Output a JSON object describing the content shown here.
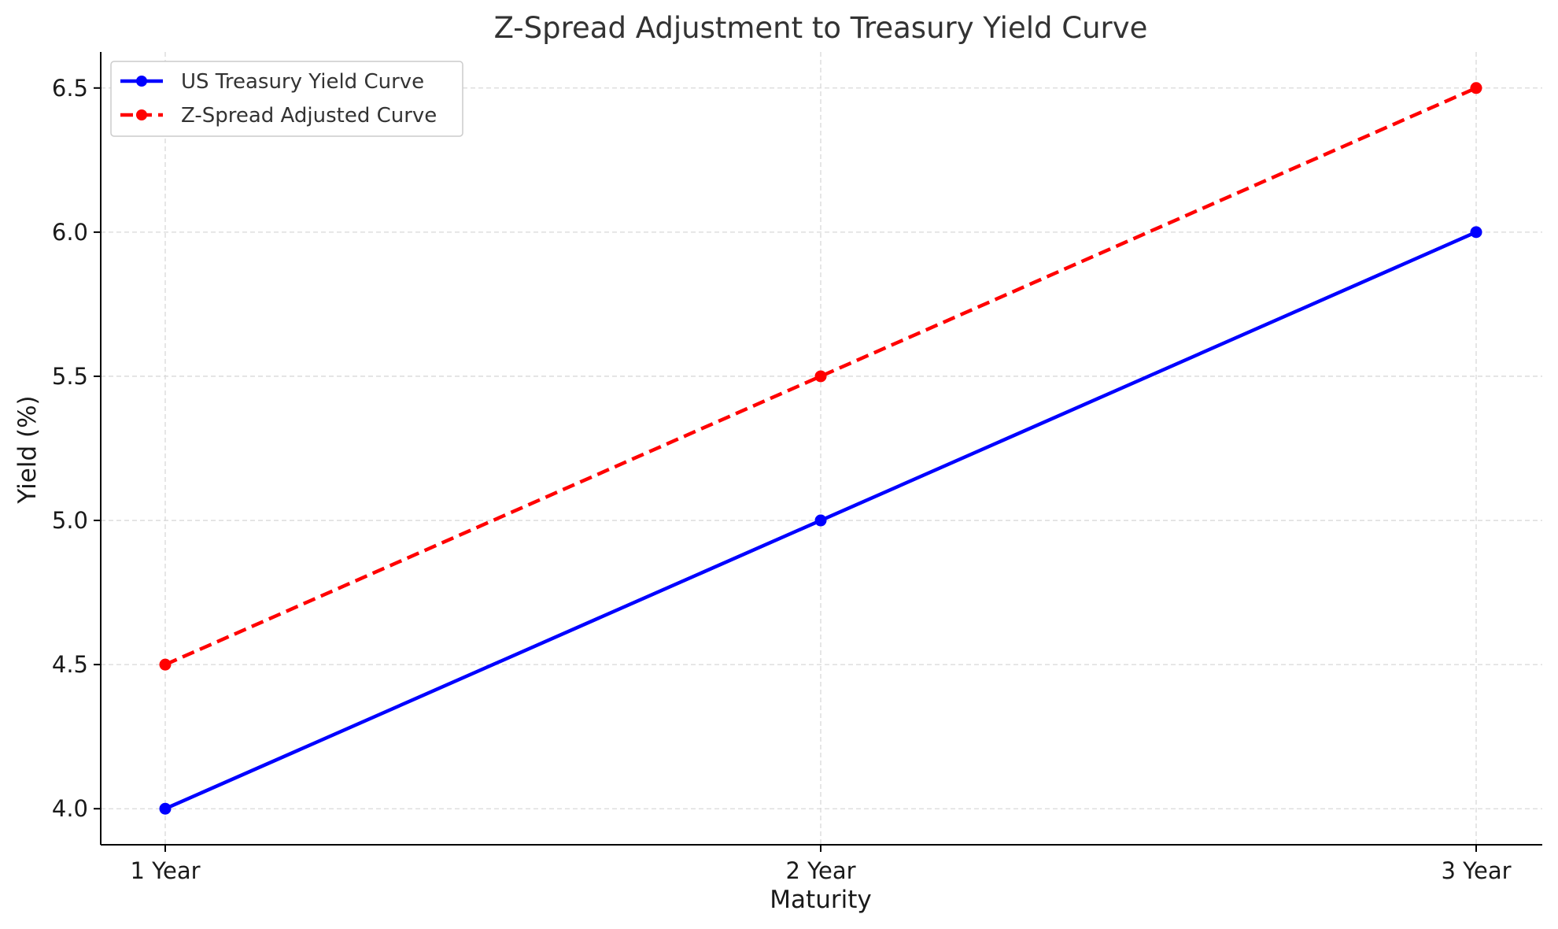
{
  "chart_data": {
    "type": "line",
    "title": "Z-Spread Adjustment to Treasury Yield Curve",
    "xlabel": "Maturity",
    "ylabel": "Yield (%)",
    "categories": [
      "1 Year",
      "2 Year",
      "3 Year"
    ],
    "ylim": [
      3.875,
      6.625
    ],
    "yticks": [
      4.0,
      4.5,
      5.0,
      5.5,
      6.0,
      6.5
    ],
    "ytick_labels": [
      "4.0",
      "4.5",
      "5.0",
      "5.5",
      "6.0",
      "6.5"
    ],
    "grid": true,
    "legend_position": "top-left",
    "series": [
      {
        "name": "US Treasury Yield Curve",
        "values": [
          4.0,
          5.0,
          6.0
        ],
        "color": "#0000ff",
        "style": "solid",
        "marker": "circle"
      },
      {
        "name": "Z-Spread Adjusted Curve",
        "values": [
          4.5,
          5.5,
          6.5
        ],
        "color": "#ff0000",
        "style": "dashed",
        "marker": "circle"
      }
    ]
  }
}
